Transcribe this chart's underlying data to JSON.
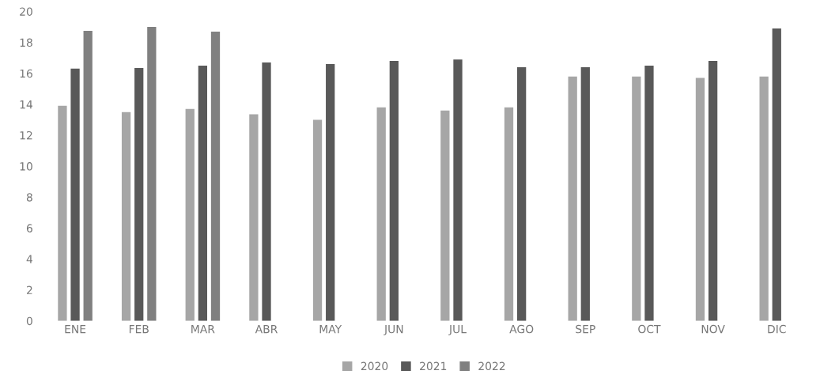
{
  "chart_data": {
    "type": "bar",
    "categories": [
      "ENE",
      "FEB",
      "MAR",
      "ABR",
      "MAY",
      "JUN",
      "JUL",
      "AGO",
      "SEP",
      "OCT",
      "NOV",
      "DIC"
    ],
    "series": [
      {
        "name": "2020",
        "color": "#a6a6a6",
        "values": [
          13.9,
          13.5,
          13.7,
          13.35,
          13.0,
          13.8,
          13.6,
          13.8,
          15.8,
          15.8,
          15.7,
          15.8
        ]
      },
      {
        "name": "2021",
        "color": "#595959",
        "values": [
          16.3,
          16.35,
          16.5,
          16.7,
          16.6,
          16.8,
          16.9,
          16.4,
          16.4,
          16.5,
          16.8,
          18.9
        ]
      },
      {
        "name": "2022",
        "color": "#808080",
        "values": [
          18.75,
          19.0,
          18.7,
          null,
          null,
          null,
          null,
          null,
          null,
          null,
          null,
          null
        ]
      }
    ],
    "ylim": [
      0,
      20
    ],
    "yticks": [
      0,
      2,
      4,
      6,
      8,
      10,
      12,
      14,
      16,
      18,
      20
    ],
    "grid": false,
    "legend": "bottom"
  }
}
